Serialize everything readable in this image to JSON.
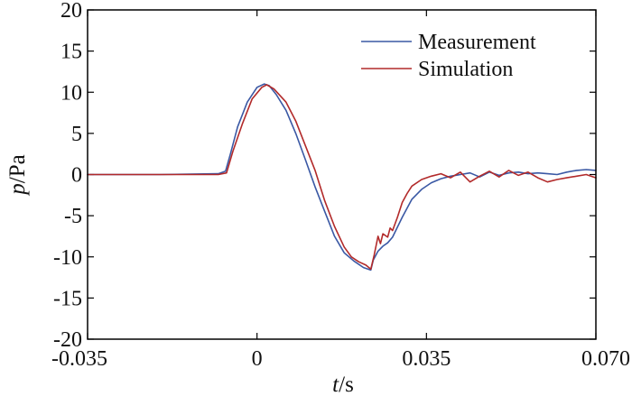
{
  "chart_data": {
    "type": "line",
    "title": "",
    "xlabel": {
      "var": "t",
      "unit": "/s"
    },
    "ylabel": {
      "var": "p",
      "unit": "/Pa"
    },
    "xlim": [
      -0.035,
      0.07
    ],
    "ylim": [
      -20,
      20
    ],
    "xticks": [
      -0.035,
      0,
      0.035,
      0.07
    ],
    "xtick_labels": [
      "-0.035",
      "0",
      "0.035",
      "0.070"
    ],
    "yticks": [
      -20,
      -15,
      -10,
      -5,
      0,
      5,
      10,
      15,
      20
    ],
    "ytick_labels": [
      "-20",
      "-15",
      "-10",
      "-5",
      "0",
      "5",
      "10",
      "15",
      "20"
    ],
    "grid": false,
    "legend": {
      "position": "top-right",
      "frame": false
    },
    "series": [
      {
        "name": "Measurement",
        "color": "#3a58a4",
        "x": [
          -0.035,
          -0.02,
          -0.008,
          -0.0065,
          -0.0055,
          -0.004,
          -0.002,
          0.0,
          0.0015,
          0.0025,
          0.004,
          0.006,
          0.008,
          0.01,
          0.012,
          0.014,
          0.016,
          0.018,
          0.02,
          0.022,
          0.0235,
          0.024,
          0.025,
          0.026,
          0.027,
          0.028,
          0.03,
          0.032,
          0.034,
          0.036,
          0.038,
          0.04,
          0.042,
          0.044,
          0.046,
          0.048,
          0.05,
          0.052,
          0.054,
          0.056,
          0.058,
          0.06,
          0.062,
          0.064,
          0.066,
          0.068,
          0.07
        ],
        "values": [
          0,
          0,
          0.1,
          0.4,
          2.5,
          5.8,
          8.8,
          10.6,
          11.0,
          10.8,
          9.7,
          7.8,
          5.0,
          1.8,
          -1.5,
          -4.5,
          -7.5,
          -9.5,
          -10.5,
          -11.3,
          -11.6,
          -10.4,
          -9.3,
          -8.7,
          -8.3,
          -7.6,
          -5.2,
          -3.0,
          -1.8,
          -1.0,
          -0.5,
          -0.2,
          0.0,
          0.2,
          -0.3,
          0.3,
          -0.1,
          0.2,
          0.3,
          0.1,
          0.2,
          0.1,
          0.0,
          0.3,
          0.5,
          0.6,
          0.5
        ]
      },
      {
        "name": "Simulation",
        "color": "#b22a2a",
        "x": [
          -0.035,
          -0.02,
          -0.008,
          -0.0063,
          -0.005,
          -0.003,
          -0.001,
          0.001,
          0.002,
          0.0035,
          0.006,
          0.008,
          0.01,
          0.012,
          0.014,
          0.016,
          0.018,
          0.0195,
          0.021,
          0.0225,
          0.0235,
          0.0242,
          0.025,
          0.0255,
          0.026,
          0.027,
          0.0275,
          0.028,
          0.029,
          0.03,
          0.031,
          0.032,
          0.034,
          0.036,
          0.038,
          0.04,
          0.042,
          0.044,
          0.046,
          0.048,
          0.05,
          0.052,
          0.054,
          0.056,
          0.058,
          0.06,
          0.062,
          0.064,
          0.066,
          0.068,
          0.07
        ],
        "values": [
          0,
          0,
          0,
          0.2,
          2.8,
          6.2,
          9.2,
          10.6,
          10.9,
          10.4,
          8.8,
          6.5,
          3.5,
          0.5,
          -3.2,
          -6.3,
          -8.8,
          -10.0,
          -10.6,
          -11.0,
          -11.5,
          -9.8,
          -7.5,
          -8.4,
          -7.2,
          -7.6,
          -6.5,
          -6.8,
          -5.2,
          -3.4,
          -2.3,
          -1.4,
          -0.6,
          -0.2,
          0.1,
          -0.4,
          0.3,
          -0.9,
          -0.2,
          0.4,
          -0.3,
          0.5,
          -0.1,
          0.3,
          -0.4,
          -0.9,
          -0.6,
          -0.4,
          -0.2,
          0.0,
          -0.4
        ]
      }
    ]
  }
}
